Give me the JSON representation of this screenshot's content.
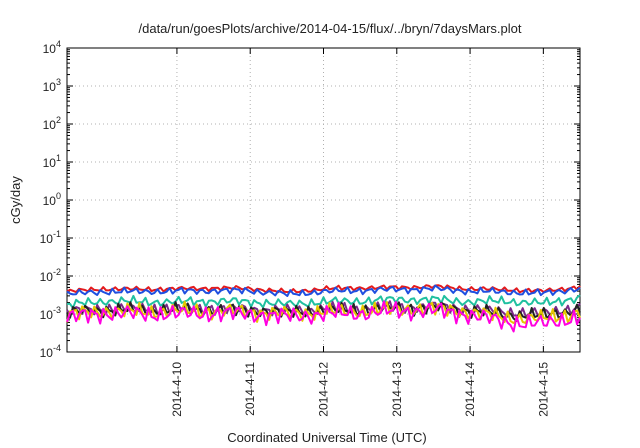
{
  "chart_data": {
    "type": "line",
    "title": "/data/run/goesPlots/archive/2014-04-15/flux/../bryn/7daysMars.plot",
    "xlabel": "Coordinated Universal Time (UTC)",
    "ylabel": "cGy/day",
    "y_scale": "log",
    "ylim": [
      0.0001,
      10000
    ],
    "y_ticks": [
      {
        "base": "10",
        "exp": "-4",
        "value": 0.0001
      },
      {
        "base": "10",
        "exp": "-3",
        "value": 0.001
      },
      {
        "base": "10",
        "exp": "-2",
        "value": 0.01
      },
      {
        "base": "10",
        "exp": "-1",
        "value": 0.1
      },
      {
        "base": "10",
        "exp": "0",
        "value": 1
      },
      {
        "base": "10",
        "exp": "1",
        "value": 10
      },
      {
        "base": "10",
        "exp": "2",
        "value": 100
      },
      {
        "base": "10",
        "exp": "3",
        "value": 1000
      },
      {
        "base": "10",
        "exp": "4",
        "value": 10000
      }
    ],
    "xlim": [
      "2014-04-09 00:00",
      "2014-04-16 00:00"
    ],
    "x_ticks": [
      "2014-4-10",
      "2014-4-11",
      "2014-4-12",
      "2014-4-13",
      "2014-4-14",
      "2014-4-15"
    ],
    "grid": true,
    "legend": "none",
    "x": [
      "2014-04-09 00:00",
      "2014-04-09 12:00",
      "2014-04-10 00:00",
      "2014-04-10 12:00",
      "2014-04-11 00:00",
      "2014-04-11 12:00",
      "2014-04-12 00:00",
      "2014-04-12 12:00",
      "2014-04-13 00:00",
      "2014-04-13 12:00",
      "2014-04-14 00:00",
      "2014-04-14 12:00",
      "2014-04-15 00:00",
      "2014-04-15 12:00",
      "2014-04-16 00:00"
    ],
    "series": [
      {
        "color": "#e41a1c",
        "values": [
          0.0039,
          0.0046,
          0.0045,
          0.0046,
          0.0048,
          0.0047,
          0.0038,
          0.0046,
          0.0049,
          0.005,
          0.0053,
          0.0046,
          0.0044,
          0.004,
          0.0052
        ]
      },
      {
        "color": "#1f4fe0",
        "values": [
          0.0033,
          0.0039,
          0.0039,
          0.004,
          0.0041,
          0.0041,
          0.0033,
          0.0039,
          0.0042,
          0.0044,
          0.0046,
          0.004,
          0.0038,
          0.0035,
          0.0047
        ]
      },
      {
        "color": "#20c0a0",
        "values": [
          0.0017,
          0.0022,
          0.0021,
          0.0021,
          0.0022,
          0.0021,
          0.0018,
          0.0021,
          0.0022,
          0.0024,
          0.0024,
          0.0021,
          0.0022,
          0.0019,
          0.0027
        ]
      },
      {
        "color": "#7b2a8a",
        "values": [
          0.00115,
          0.0014,
          0.00135,
          0.0014,
          0.0014,
          0.00135,
          0.0012,
          0.00135,
          0.0014,
          0.00155,
          0.0016,
          0.00135,
          0.0011,
          0.00105,
          0.0015
        ]
      },
      {
        "color": "#222222",
        "values": [
          0.00105,
          0.0013,
          0.00125,
          0.0013,
          0.0013,
          0.00125,
          0.0011,
          0.00125,
          0.0013,
          0.00145,
          0.0015,
          0.00125,
          0.00095,
          0.0009,
          0.00135
        ]
      },
      {
        "color": "#e6c800",
        "values": [
          0.00095,
          0.0012,
          0.00115,
          0.0012,
          0.0012,
          0.00115,
          0.001,
          0.00115,
          0.0012,
          0.00135,
          0.0014,
          0.00115,
          0.0008,
          0.00075,
          0.0011
        ]
      },
      {
        "color": "#ff00e0",
        "values": [
          0.0008,
          0.00105,
          0.001,
          0.001,
          0.00105,
          0.001,
          0.00085,
          0.001,
          0.00105,
          0.0012,
          0.00125,
          0.00095,
          0.0006,
          0.00055,
          0.00085
        ]
      }
    ]
  }
}
